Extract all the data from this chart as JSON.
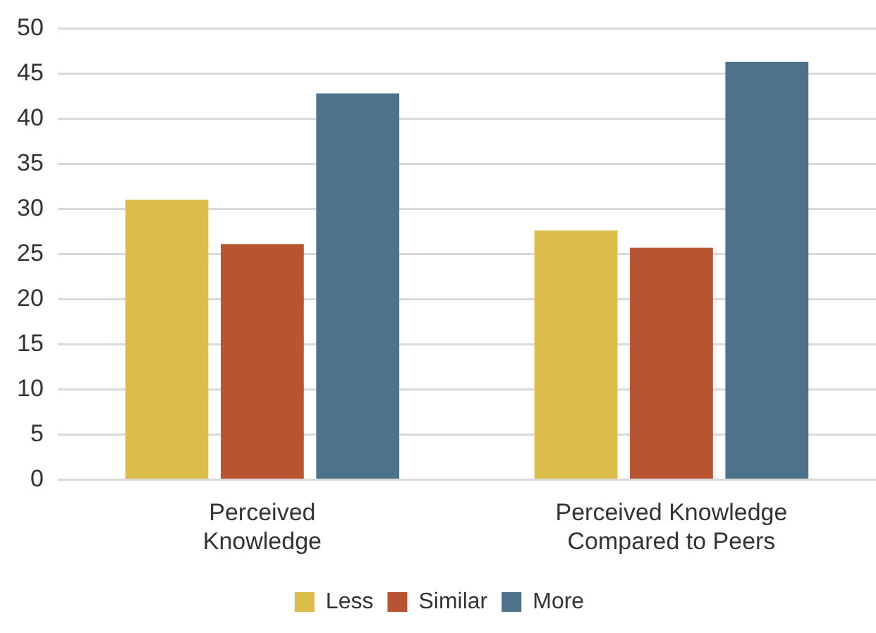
{
  "chart_data": {
    "type": "bar",
    "categories": [
      "Perceived Knowledge",
      "Perceived Knowledge Compared to Peers"
    ],
    "series": [
      {
        "name": "Less",
        "color": "#dcbc4a",
        "values": [
          31.0,
          27.6
        ]
      },
      {
        "name": "Similar",
        "color": "#b85432",
        "values": [
          26.1,
          25.7
        ]
      },
      {
        "name": "More",
        "color": "#4e7289",
        "values": [
          42.8,
          46.3
        ]
      }
    ],
    "ylim": [
      0,
      50
    ],
    "yticks": [
      0,
      5,
      10,
      15,
      20,
      25,
      30,
      35,
      40,
      45,
      50
    ],
    "grid": "y",
    "legend": "bottom"
  }
}
